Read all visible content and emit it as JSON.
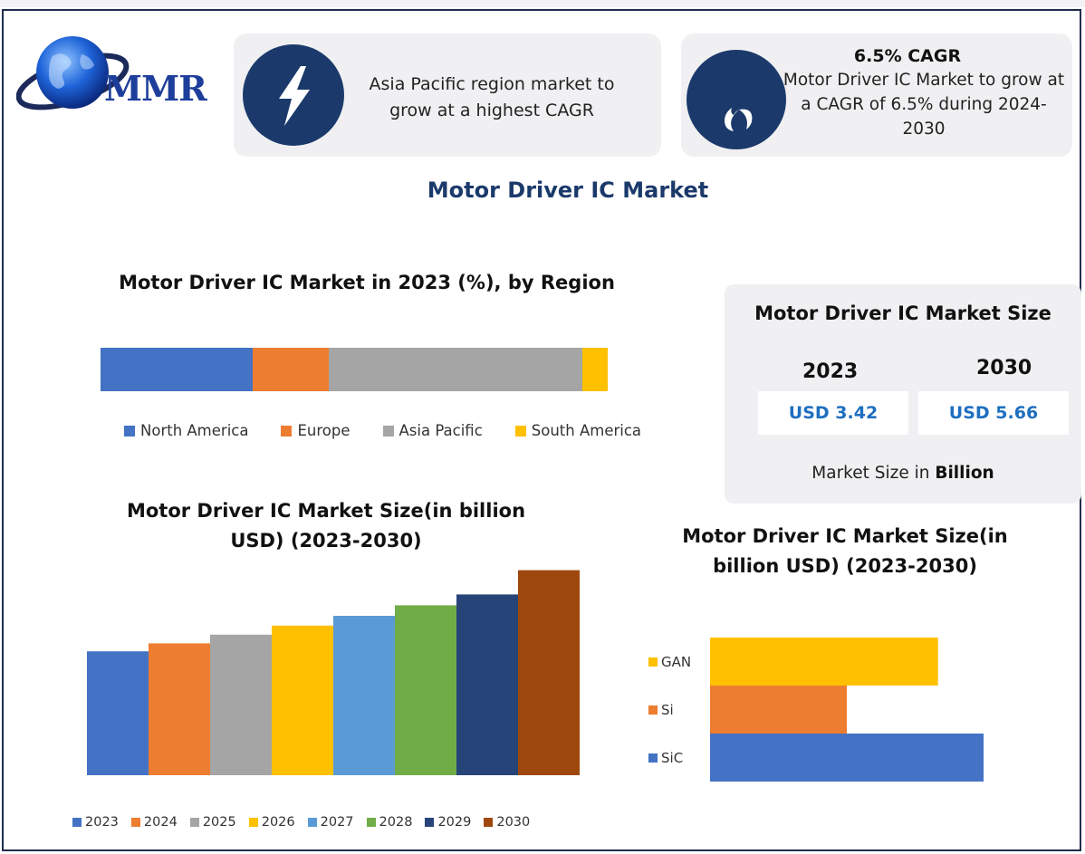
{
  "logo": {
    "text": "MMR"
  },
  "card1": {
    "icon": "lightning-icon",
    "text": "Asia Pacific region market to grow at a highest CAGR"
  },
  "card2": {
    "icon": "flame-icon",
    "title": "6.5% CAGR",
    "text": "Motor Driver IC Market to grow at a CAGR of 6.5% during 2024-2030"
  },
  "main_title": "Motor Driver IC Market",
  "region_chart": {
    "title": "Motor Driver IC Market in 2023 (%), by Region"
  },
  "size_box": {
    "title": "Motor Driver IC Market Size",
    "year1": "2023",
    "year2": "2030",
    "value1": "USD 3.42",
    "value2": "USD 5.66",
    "note_prefix": "Market Size in ",
    "note_bold": "Billion"
  },
  "bar_chart": {
    "title": "Motor Driver IC Market Size(in billion USD) (2023-2030)"
  },
  "hbar_chart": {
    "title": "Motor Driver IC Market Size(in billion USD) (2023-2030)"
  },
  "colors": {
    "blue": "#4472c4",
    "orange": "#ed7d31",
    "gray": "#a5a5a5",
    "gold": "#ffc000",
    "lightblue": "#5b9bd5",
    "green": "#70ad47",
    "navy": "#264478",
    "brown": "#9e480e",
    "accent": "#1b3a6b"
  },
  "chart_data": [
    {
      "type": "bar",
      "orientation": "horizontal-stacked",
      "title": "Motor Driver IC Market in 2023 (%), by Region",
      "series": [
        {
          "name": "North America",
          "values": [
            30
          ],
          "color": "#4472c4"
        },
        {
          "name": "Europe",
          "values": [
            15
          ],
          "color": "#ed7d31"
        },
        {
          "name": "Asia Pacific",
          "values": [
            50
          ],
          "color": "#a5a5a5"
        },
        {
          "name": "South America",
          "values": [
            5
          ],
          "color": "#ffc000"
        }
      ],
      "legend": "bottom"
    },
    {
      "type": "bar",
      "title": "Motor Driver IC Market Size(in billion USD) (2023-2030)",
      "categories": [
        "2023",
        "2024",
        "2025",
        "2026",
        "2027",
        "2028",
        "2029",
        "2030"
      ],
      "values": [
        3.42,
        3.64,
        3.88,
        4.13,
        4.4,
        4.69,
        4.99,
        5.66
      ],
      "colors": [
        "#4472c4",
        "#ed7d31",
        "#a5a5a5",
        "#ffc000",
        "#5b9bd5",
        "#70ad47",
        "#264478",
        "#9e480e"
      ],
      "legend": "bottom",
      "grid": false
    },
    {
      "type": "bar",
      "orientation": "horizontal",
      "title": "Motor Driver IC Market Size(in billion USD) (2023-2030)",
      "categories": [
        "SiC",
        "Si",
        "GAN"
      ],
      "values": [
        3.0,
        1.5,
        2.5
      ],
      "colors": [
        "#4472c4",
        "#ed7d31",
        "#ffc000"
      ],
      "legend": "left"
    }
  ]
}
